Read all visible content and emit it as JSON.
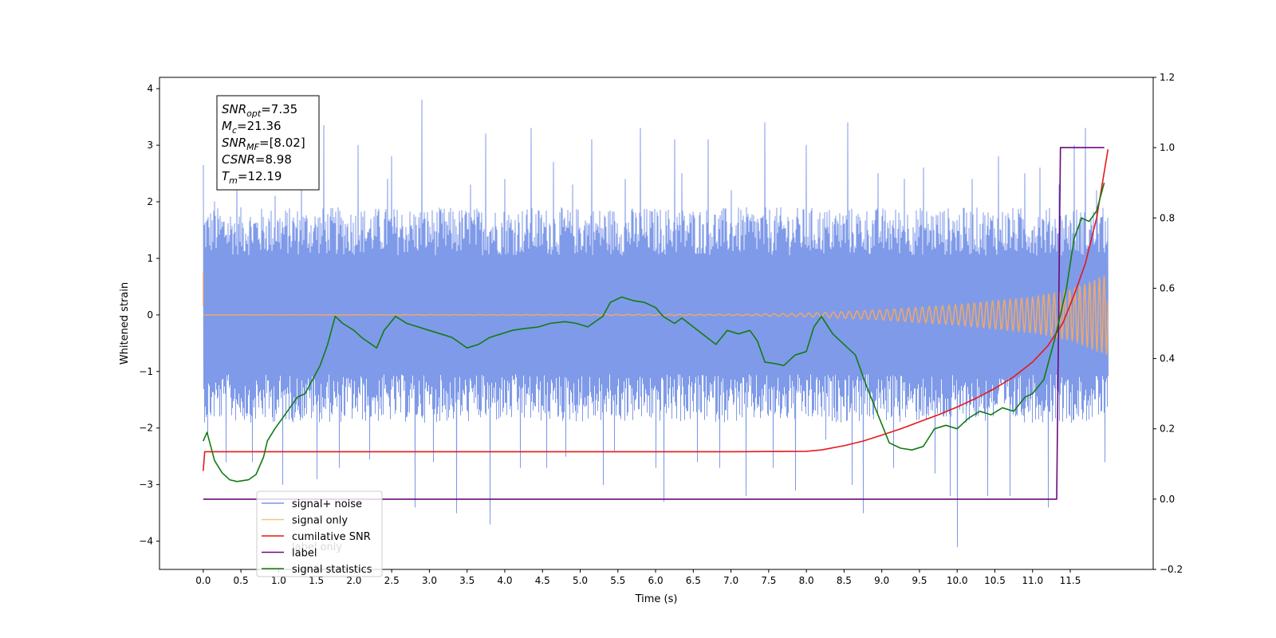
{
  "chart_data": {
    "type": "line",
    "xlabel": "Time (s)",
    "ylabel": "Whitened strain",
    "xlim": [
      -0.58,
      12.6
    ],
    "ylim": [
      -4.5,
      4.2
    ],
    "y2lim": [
      -0.2,
      1.2
    ],
    "x_ticks": [
      0.0,
      0.5,
      1.0,
      1.5,
      2.0,
      2.5,
      3.0,
      3.5,
      4.0,
      4.5,
      5.0,
      5.5,
      6.0,
      6.5,
      7.0,
      7.5,
      8.0,
      8.5,
      9.0,
      9.5,
      10.0,
      10.5,
      11.0,
      11.5
    ],
    "x_tick_labels": [
      "0.0",
      "0.5",
      "1.0",
      "1.5",
      "2.0",
      "2.5",
      "3.0",
      "3.5",
      "4.0",
      "4.5",
      "5.0",
      "5.5",
      "6.0",
      "6.5",
      "7.0",
      "7.5",
      "8.0",
      "8.5",
      "9.0",
      "9.5",
      "10.0",
      "10.5",
      "11.0",
      "11.5"
    ],
    "y_ticks": [
      -4,
      -3,
      -2,
      -1,
      0,
      1,
      2,
      3,
      4
    ],
    "y_tick_labels": [
      "−4",
      "−3",
      "−2",
      "−1",
      "0",
      "1",
      "2",
      "3",
      "4"
    ],
    "y2_ticks": [
      -0.2,
      0.0,
      0.2,
      0.4,
      0.6,
      0.8,
      1.0,
      1.2
    ],
    "y2_tick_labels": [
      "−0.2",
      "0.0",
      "0.2",
      "0.4",
      "0.6",
      "0.8",
      "1.0",
      "1.2"
    ],
    "grid": false,
    "legend_position": "bottom-left",
    "annotation": {
      "lines": [
        {
          "base": "SNR",
          "sub": "opt",
          "value": "=7.35"
        },
        {
          "base": "M",
          "sub": "c",
          "value": "=21.36"
        },
        {
          "base": "SNR",
          "sub": "MF",
          "value": "=[8.02]"
        },
        {
          "base": "CSNR",
          "sub": "",
          "value": "=8.98"
        },
        {
          "base": "T",
          "sub": "m",
          "value": "=12.19"
        }
      ]
    },
    "series": [
      {
        "name": "signal+ noise",
        "color": "#7895e8",
        "axis": "left",
        "style": "noise",
        "x_range": [
          0.0,
          12.0
        ],
        "envelope_core": [
          -1.9,
          1.9
        ],
        "spikes": [
          [
            0.0,
            2.65
          ],
          [
            0.05,
            -2.1
          ],
          [
            0.15,
            2.0
          ],
          [
            0.3,
            -2.6
          ],
          [
            0.45,
            2.6
          ],
          [
            0.65,
            -2.6
          ],
          [
            0.95,
            2.1
          ],
          [
            1.05,
            -3.0
          ],
          [
            1.3,
            2.5
          ],
          [
            1.5,
            -2.9
          ],
          [
            1.6,
            3.35
          ],
          [
            1.8,
            -2.7
          ],
          [
            2.05,
            3.0
          ],
          [
            2.2,
            -2.55
          ],
          [
            2.45,
            2.4
          ],
          [
            2.5,
            2.8
          ],
          [
            2.8,
            -3.4
          ],
          [
            2.9,
            3.8
          ],
          [
            3.05,
            -2.6
          ],
          [
            3.35,
            -3.5
          ],
          [
            3.55,
            2.3
          ],
          [
            3.75,
            3.2
          ],
          [
            3.8,
            -3.7
          ],
          [
            4.0,
            2.4
          ],
          [
            4.2,
            -2.7
          ],
          [
            4.35,
            3.3
          ],
          [
            4.55,
            -2.7
          ],
          [
            4.65,
            2.7
          ],
          [
            4.8,
            -2.5
          ],
          [
            4.9,
            2.3
          ],
          [
            5.15,
            3.1
          ],
          [
            5.3,
            -3.0
          ],
          [
            5.45,
            -2.4
          ],
          [
            5.6,
            2.4
          ],
          [
            5.8,
            3.3
          ],
          [
            6.0,
            -2.7
          ],
          [
            6.1,
            -3.3
          ],
          [
            6.25,
            3.1
          ],
          [
            6.35,
            2.5
          ],
          [
            6.55,
            -2.6
          ],
          [
            6.7,
            3.1
          ],
          [
            6.85,
            -2.7
          ],
          [
            7.0,
            2.2
          ],
          [
            7.2,
            -3.2
          ],
          [
            7.45,
            3.4
          ],
          [
            7.55,
            -2.7
          ],
          [
            7.85,
            -3.1
          ],
          [
            8.0,
            3.0
          ],
          [
            8.25,
            -2.2
          ],
          [
            8.55,
            3.4
          ],
          [
            8.6,
            -3.0
          ],
          [
            8.75,
            -3.5
          ],
          [
            8.95,
            2.5
          ],
          [
            9.15,
            -2.7
          ],
          [
            9.3,
            2.4
          ],
          [
            9.55,
            2.6
          ],
          [
            9.7,
            -2.8
          ],
          [
            9.9,
            -3.2
          ],
          [
            10.0,
            -4.1
          ],
          [
            10.2,
            2.4
          ],
          [
            10.4,
            -3.2
          ],
          [
            10.55,
            2.8
          ],
          [
            10.7,
            -3.2
          ],
          [
            10.9,
            2.5
          ],
          [
            11.1,
            2.6
          ],
          [
            11.2,
            -3.4
          ],
          [
            11.35,
            2.3
          ],
          [
            11.55,
            3.0
          ],
          [
            11.7,
            3.3
          ],
          [
            11.85,
            2.2
          ],
          [
            11.95,
            -2.6
          ]
        ]
      },
      {
        "name": "signal only",
        "color": "#e8a870",
        "axis": "left",
        "style": "chirp",
        "x_range": [
          0.0,
          12.0
        ],
        "amplitude_points": [
          [
            0.0,
            0.0
          ],
          [
            7.0,
            0.01
          ],
          [
            8.0,
            0.03
          ],
          [
            9.0,
            0.09
          ],
          [
            10.0,
            0.18
          ],
          [
            11.0,
            0.32
          ],
          [
            11.5,
            0.45
          ],
          [
            12.0,
            0.72
          ]
        ]
      },
      {
        "name": "cumilative SNR",
        "color": "#e8171a",
        "axis": "right",
        "points": [
          [
            0.0,
            0.08
          ],
          [
            0.02,
            0.135
          ],
          [
            1.0,
            0.135
          ],
          [
            2.0,
            0.135
          ],
          [
            3.0,
            0.135
          ],
          [
            4.0,
            0.135
          ],
          [
            5.0,
            0.135
          ],
          [
            6.0,
            0.135
          ],
          [
            7.0,
            0.135
          ],
          [
            8.0,
            0.136
          ],
          [
            8.2,
            0.14
          ],
          [
            8.5,
            0.152
          ],
          [
            8.75,
            0.165
          ],
          [
            9.0,
            0.182
          ],
          [
            9.25,
            0.2
          ],
          [
            9.5,
            0.22
          ],
          [
            9.75,
            0.24
          ],
          [
            10.0,
            0.262
          ],
          [
            10.25,
            0.287
          ],
          [
            10.5,
            0.315
          ],
          [
            10.75,
            0.348
          ],
          [
            11.0,
            0.39
          ],
          [
            11.2,
            0.435
          ],
          [
            11.4,
            0.5
          ],
          [
            11.55,
            0.58
          ],
          [
            11.7,
            0.67
          ],
          [
            11.85,
            0.8
          ],
          [
            12.0,
            0.995
          ]
        ]
      },
      {
        "name": "label",
        "color": "#6a0a7a",
        "axis": "right",
        "points": [
          [
            0.0,
            0.0
          ],
          [
            11.32,
            0.0
          ],
          [
            11.37,
            1.0
          ],
          [
            11.95,
            1.0
          ]
        ]
      },
      {
        "name": "signal statistics",
        "color": "#137b13",
        "axis": "right",
        "points": [
          [
            0.0,
            0.165
          ],
          [
            0.05,
            0.19
          ],
          [
            0.1,
            0.15
          ],
          [
            0.15,
            0.11
          ],
          [
            0.25,
            0.075
          ],
          [
            0.35,
            0.055
          ],
          [
            0.45,
            0.05
          ],
          [
            0.6,
            0.055
          ],
          [
            0.7,
            0.07
          ],
          [
            0.8,
            0.12
          ],
          [
            0.85,
            0.165
          ],
          [
            0.95,
            0.2
          ],
          [
            1.05,
            0.23
          ],
          [
            1.15,
            0.26
          ],
          [
            1.25,
            0.29
          ],
          [
            1.35,
            0.3
          ],
          [
            1.45,
            0.34
          ],
          [
            1.55,
            0.38
          ],
          [
            1.65,
            0.44
          ],
          [
            1.75,
            0.52
          ],
          [
            1.85,
            0.5
          ],
          [
            2.0,
            0.48
          ],
          [
            2.1,
            0.46
          ],
          [
            2.3,
            0.43
          ],
          [
            2.4,
            0.48
          ],
          [
            2.55,
            0.52
          ],
          [
            2.7,
            0.5
          ],
          [
            2.85,
            0.49
          ],
          [
            3.0,
            0.48
          ],
          [
            3.15,
            0.47
          ],
          [
            3.3,
            0.46
          ],
          [
            3.5,
            0.43
          ],
          [
            3.65,
            0.44
          ],
          [
            3.8,
            0.46
          ],
          [
            3.95,
            0.47
          ],
          [
            4.1,
            0.48
          ],
          [
            4.25,
            0.485
          ],
          [
            4.45,
            0.49
          ],
          [
            4.6,
            0.5
          ],
          [
            4.8,
            0.505
          ],
          [
            4.95,
            0.5
          ],
          [
            5.1,
            0.49
          ],
          [
            5.3,
            0.52
          ],
          [
            5.4,
            0.56
          ],
          [
            5.55,
            0.575
          ],
          [
            5.7,
            0.565
          ],
          [
            5.85,
            0.56
          ],
          [
            6.0,
            0.545
          ],
          [
            6.1,
            0.52
          ],
          [
            6.25,
            0.5
          ],
          [
            6.35,
            0.515
          ],
          [
            6.5,
            0.49
          ],
          [
            6.65,
            0.465
          ],
          [
            6.8,
            0.44
          ],
          [
            6.95,
            0.48
          ],
          [
            7.1,
            0.47
          ],
          [
            7.25,
            0.48
          ],
          [
            7.35,
            0.45
          ],
          [
            7.45,
            0.39
          ],
          [
            7.6,
            0.385
          ],
          [
            7.7,
            0.38
          ],
          [
            7.85,
            0.41
          ],
          [
            8.0,
            0.42
          ],
          [
            8.1,
            0.49
          ],
          [
            8.2,
            0.52
          ],
          [
            8.35,
            0.47
          ],
          [
            8.5,
            0.44
          ],
          [
            8.65,
            0.41
          ],
          [
            8.8,
            0.32
          ],
          [
            8.95,
            0.24
          ],
          [
            9.1,
            0.16
          ],
          [
            9.25,
            0.145
          ],
          [
            9.4,
            0.14
          ],
          [
            9.55,
            0.15
          ],
          [
            9.7,
            0.2
          ],
          [
            9.85,
            0.21
          ],
          [
            10.0,
            0.2
          ],
          [
            10.15,
            0.23
          ],
          [
            10.3,
            0.25
          ],
          [
            10.45,
            0.24
          ],
          [
            10.6,
            0.26
          ],
          [
            10.75,
            0.25
          ],
          [
            10.9,
            0.29
          ],
          [
            11.0,
            0.3
          ],
          [
            11.15,
            0.34
          ],
          [
            11.3,
            0.46
          ],
          [
            11.45,
            0.6
          ],
          [
            11.55,
            0.74
          ],
          [
            11.65,
            0.8
          ],
          [
            11.75,
            0.79
          ],
          [
            11.85,
            0.82
          ],
          [
            11.95,
            0.9
          ]
        ]
      }
    ],
    "legend": [
      {
        "label": "signal+ noise",
        "color": "#7895e8"
      },
      {
        "label": "signal only",
        "color": "#f5c878"
      },
      {
        "label": "cumilative SNR",
        "color": "#e8171a"
      },
      {
        "label": "label",
        "color": "#6a0a7a"
      },
      {
        "label": "signal statistics",
        "color": "#137b13"
      }
    ],
    "legend_hidden_labels": [
      "label only"
    ]
  }
}
